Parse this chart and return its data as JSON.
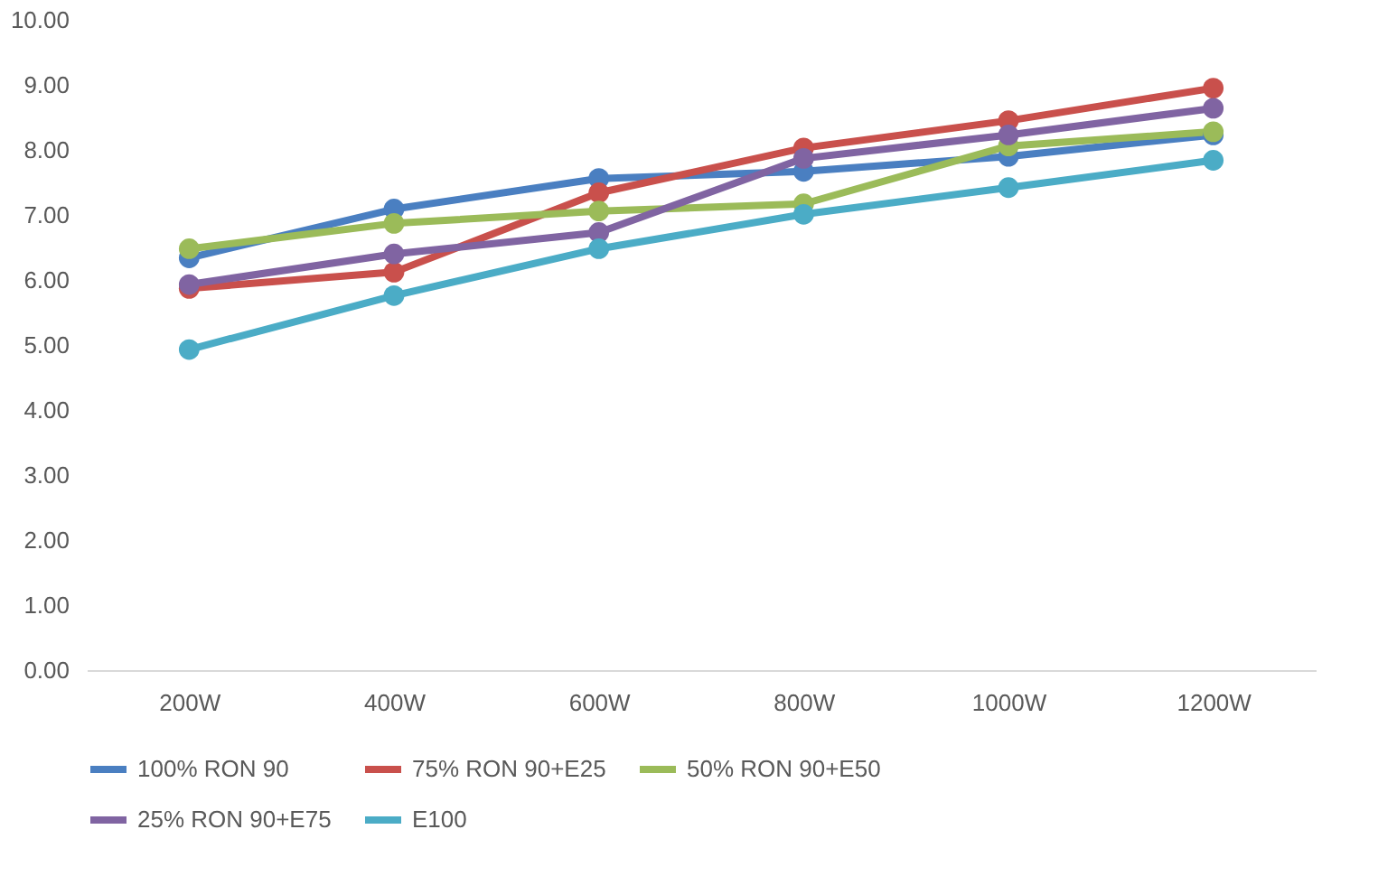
{
  "chart_data": {
    "type": "line",
    "categories": [
      "200W",
      "400W",
      "600W",
      "800W",
      "1000W",
      "1200W"
    ],
    "series": [
      {
        "name": "100% RON 90",
        "color": "#4a7fc1",
        "values": [
          6.34,
          7.09,
          7.56,
          7.67,
          7.9,
          8.23
        ]
      },
      {
        "name": "75% RON 90+E25",
        "color": "#c9504c",
        "values": [
          5.87,
          6.12,
          7.34,
          8.03,
          8.45,
          8.95
        ]
      },
      {
        "name": "50% RON 90+E50",
        "color": "#9bbb59",
        "values": [
          6.48,
          6.87,
          7.06,
          7.17,
          8.06,
          8.28
        ]
      },
      {
        "name": "25% RON 90+E75",
        "color": "#8064a2",
        "values": [
          5.93,
          6.4,
          6.73,
          7.87,
          8.23,
          8.64
        ]
      },
      {
        "name": "E100",
        "color": "#4bacc6",
        "values": [
          4.93,
          5.76,
          6.48,
          7.01,
          7.42,
          7.84
        ]
      }
    ],
    "ylim": [
      0,
      10
    ],
    "yticks": [
      {
        "value": 0,
        "label": "0.00"
      },
      {
        "value": 1,
        "label": "1.00"
      },
      {
        "value": 2,
        "label": "2.00"
      },
      {
        "value": 3,
        "label": "3.00"
      },
      {
        "value": 4,
        "label": "4.00"
      },
      {
        "value": 5,
        "label": "5.00"
      },
      {
        "value": 6,
        "label": "6.00"
      },
      {
        "value": 7,
        "label": "7.00"
      },
      {
        "value": 8,
        "label": "8.00"
      },
      {
        "value": 9,
        "label": "9.00"
      },
      {
        "value": 10,
        "label": "10.00"
      }
    ],
    "grid": false,
    "legend": "bottom",
    "marker": "circle",
    "line_style": "solid"
  }
}
